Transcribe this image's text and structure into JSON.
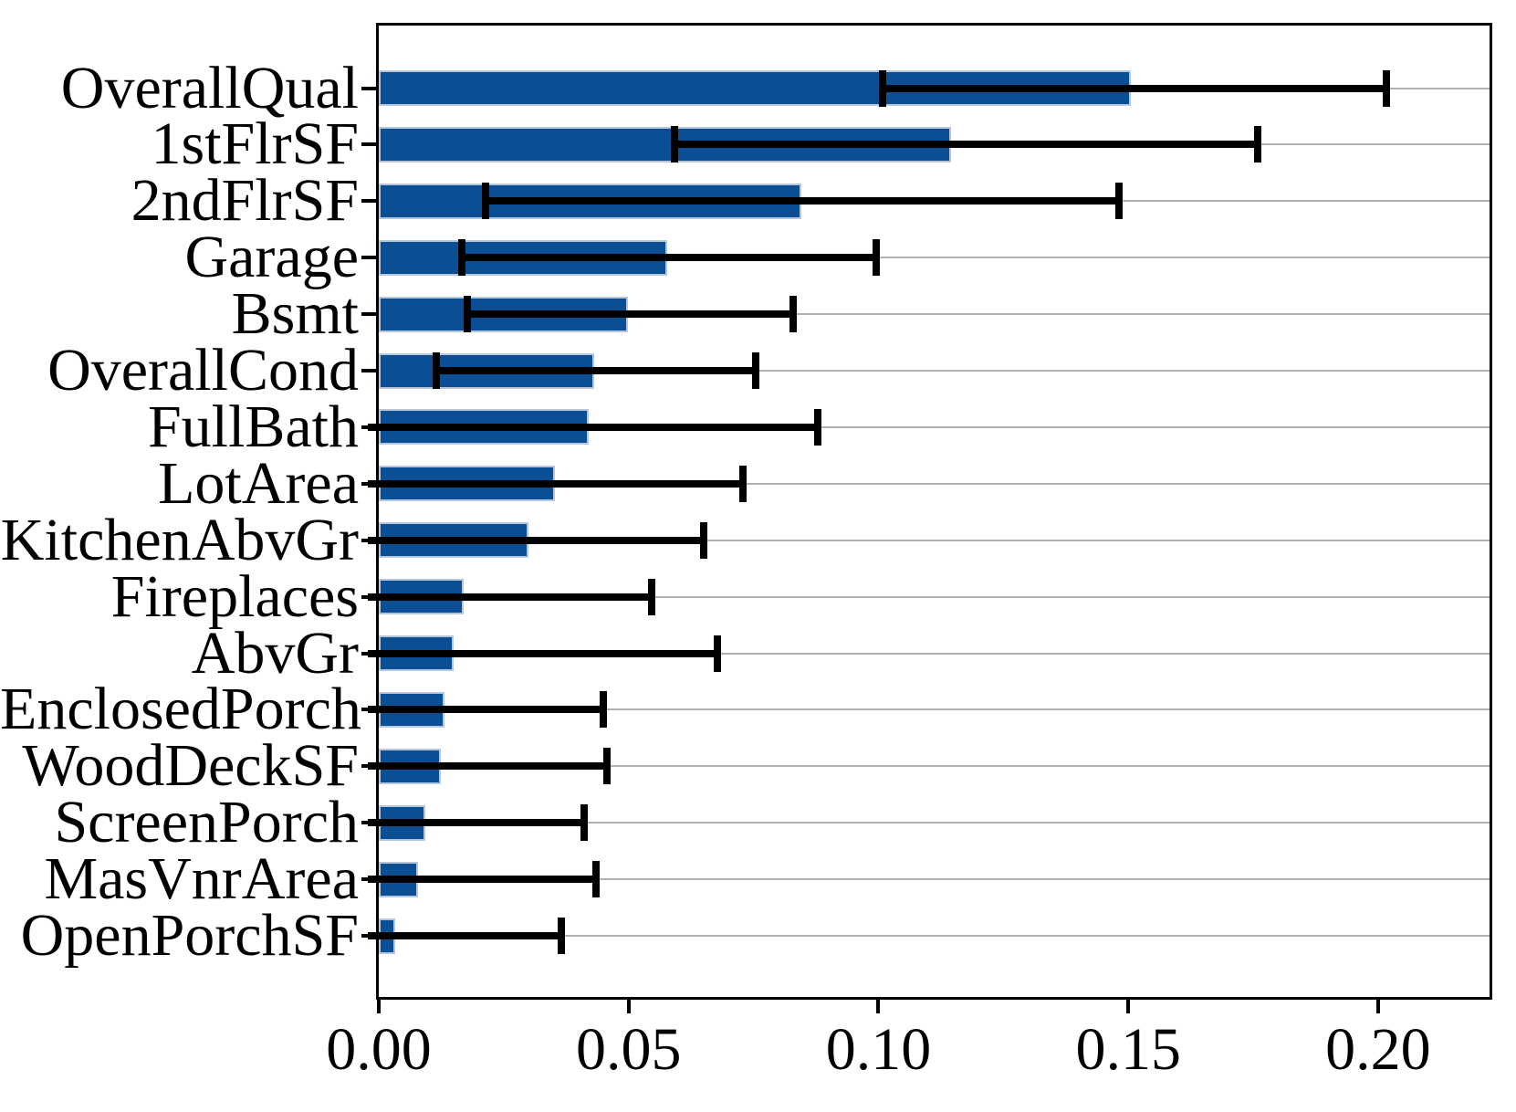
{
  "chart_data": {
    "type": "bar",
    "orientation": "horizontal",
    "title": "",
    "xlabel": "",
    "ylabel": "",
    "categories": [
      "OverallQual",
      "1stFlrSF",
      "2ndFlrSF",
      "Garage",
      "Bsmt",
      "OverallCond",
      "FullBath",
      "LotArea",
      "KitchenAbvGr",
      "Fireplaces",
      "AbvGr",
      "EnclosedPorch",
      "WoodDeckSF",
      "ScreenPorch",
      "MasVnrArea",
      "OpenPorchSF"
    ],
    "values": [
      0.1505,
      0.1146,
      0.0845,
      0.0577,
      0.0498,
      0.0431,
      0.042,
      0.0352,
      0.0299,
      0.017,
      0.015,
      0.0131,
      0.0124,
      0.0093,
      0.0078,
      0.0033
    ],
    "whisker_low": [
      0.1009,
      0.0591,
      0.0214,
      0.0166,
      0.0177,
      0.0115,
      0,
      0,
      0,
      0,
      0,
      0,
      0,
      0,
      0,
      0
    ],
    "whisker_high": [
      0.2016,
      0.1759,
      0.1482,
      0.0996,
      0.083,
      0.0755,
      0.0878,
      0.0728,
      0.0651,
      0.0546,
      0.0677,
      0.045,
      0.0456,
      0.0411,
      0.0434,
      0.0365
    ],
    "xlim": [
      0,
      0.2223
    ],
    "xticks": [
      0.0,
      0.05,
      0.1,
      0.15,
      0.2
    ],
    "xtick_labels": [
      "0.00",
      "0.05",
      "0.10",
      "0.15",
      "0.20"
    ],
    "grid": "horizontal",
    "legend": "none",
    "bar_color": "#0a4e94",
    "bar_edge_color": "#b6c6dc",
    "error_color": "#000000",
    "grid_color": "#b0b0b0",
    "spine_color": "#000000",
    "background_color": "#ffffff"
  }
}
